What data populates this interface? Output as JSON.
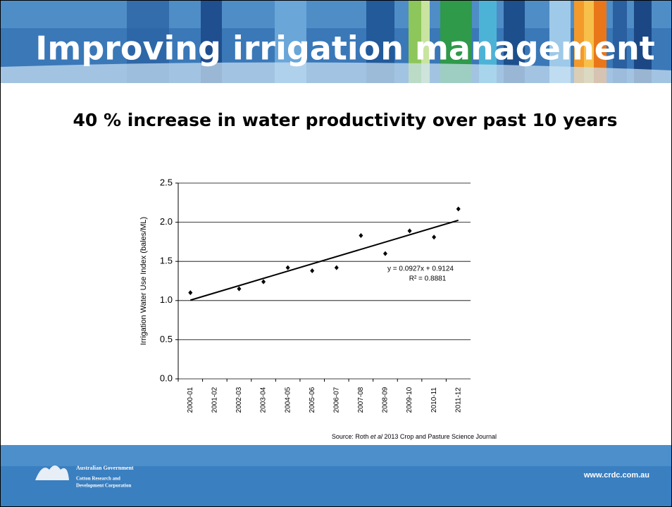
{
  "slide": {
    "title": "Improving irrigation management",
    "subtitle": "40 % increase in water productivity over past 10 years",
    "source": [
      "Source: Roth",
      "et al",
      "2013 Crop and Pasture Science Journal"
    ],
    "logo": [
      "Australian Government",
      "Cotton Research and",
      "Development Corporation"
    ],
    "website": "www.crdc.com.au"
  },
  "chart_data": {
    "type": "scatter",
    "y_label": "Irrigation Water Use Index (bales/ML)",
    "categories": [
      "2000-01",
      "2001-02",
      "2002-03",
      "2003-04",
      "2004-05",
      "2005-06",
      "2006-07",
      "2007-08",
      "2008-09",
      "2009-10",
      "2010-11",
      "2011-12"
    ],
    "values": [
      1.1,
      null,
      1.15,
      1.24,
      1.42,
      1.38,
      1.42,
      1.83,
      1.6,
      1.89,
      1.81,
      2.17
    ],
    "color": "#000000",
    "ylim": [
      0,
      2.5
    ],
    "yticks": [
      {
        "value": 0,
        "label": "0.0"
      },
      0.5,
      {
        "value": 1,
        "label": "1.0"
      },
      1.5,
      {
        "value": 2,
        "label": "2.0"
      },
      2.5
    ],
    "grid": true,
    "trendline": {
      "slope": 0.0927,
      "intercept": 0.9124,
      "equation": "y = 0.0927x + 0.9124",
      "r_squared": "R² = 0.8881"
    }
  }
}
